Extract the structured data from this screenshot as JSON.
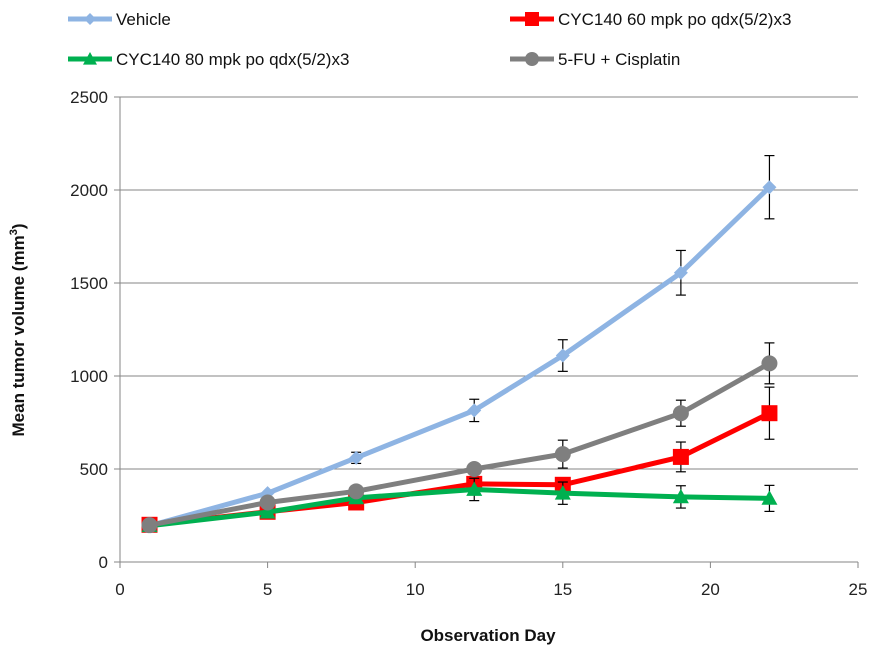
{
  "chart_data": {
    "type": "line",
    "title": "",
    "xlabel": "Observation Day",
    "ylabel": "Mean tumor volume (mm",
    "ylabel_sup": "3",
    "ylabel_close": ")",
    "xlim": [
      0,
      25
    ],
    "ylim": [
      0,
      2500
    ],
    "xticks": [
      0,
      5,
      10,
      15,
      20,
      25
    ],
    "yticks": [
      0,
      500,
      1000,
      1500,
      2000,
      2500
    ],
    "grid": "horizontal",
    "legend_position": "top",
    "series": [
      {
        "name": "Vehicle",
        "color": "#8EB4E3",
        "marker": "diamond",
        "x": [
          1,
          5,
          8,
          12,
          15,
          19,
          22
        ],
        "y": [
          195,
          370,
          560,
          815,
          1110,
          1555,
          2015
        ],
        "error": [
          0,
          0,
          30,
          60,
          85,
          120,
          170
        ]
      },
      {
        "name": "CYC140 60 mpk po qdx(5/2)x3",
        "color": "#FF0000",
        "marker": "square",
        "x": [
          1,
          5,
          8,
          12,
          15,
          19,
          22
        ],
        "y": [
          200,
          270,
          320,
          420,
          415,
          565,
          800
        ],
        "error": [
          0,
          0,
          0,
          0,
          0,
          80,
          140
        ]
      },
      {
        "name": "CYC140 80 mpk po qdx(5/2)x3",
        "color": "#00B050",
        "marker": "triangle",
        "x": [
          1,
          5,
          8,
          12,
          15,
          19,
          22
        ],
        "y": [
          195,
          268,
          345,
          390,
          370,
          350,
          342
        ],
        "error": [
          0,
          0,
          0,
          60,
          60,
          60,
          70
        ]
      },
      {
        "name": "5-FU + Cisplatin",
        "color": "#7F7F7F",
        "marker": "circle",
        "x": [
          1,
          5,
          8,
          12,
          15,
          19,
          22
        ],
        "y": [
          198,
          320,
          380,
          500,
          580,
          800,
          1068
        ],
        "error": [
          0,
          0,
          0,
          0,
          75,
          70,
          110
        ]
      }
    ]
  }
}
